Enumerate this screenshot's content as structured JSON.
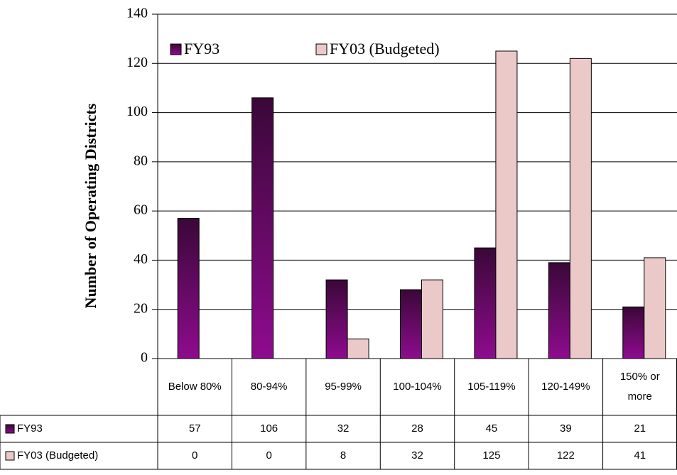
{
  "chart_data": {
    "type": "bar",
    "y_label": "Number of Operating Districts",
    "categories": [
      "Below 80%",
      "80-94%",
      "95-99%",
      "100-104%",
      "105-119%",
      "120-149%",
      "150% or more"
    ],
    "series": [
      {
        "name": "FY93",
        "color": "#7a0a7a",
        "values": [
          57,
          106,
          32,
          28,
          45,
          39,
          21
        ]
      },
      {
        "name": "FY03 (Budgeted)",
        "color": "#ecc9c9",
        "values": [
          0,
          0,
          8,
          32,
          125,
          122,
          41
        ]
      }
    ],
    "ylim": [
      0,
      140
    ],
    "yticks": [
      0,
      20,
      40,
      60,
      80,
      100,
      120,
      140
    ],
    "grid": true
  }
}
